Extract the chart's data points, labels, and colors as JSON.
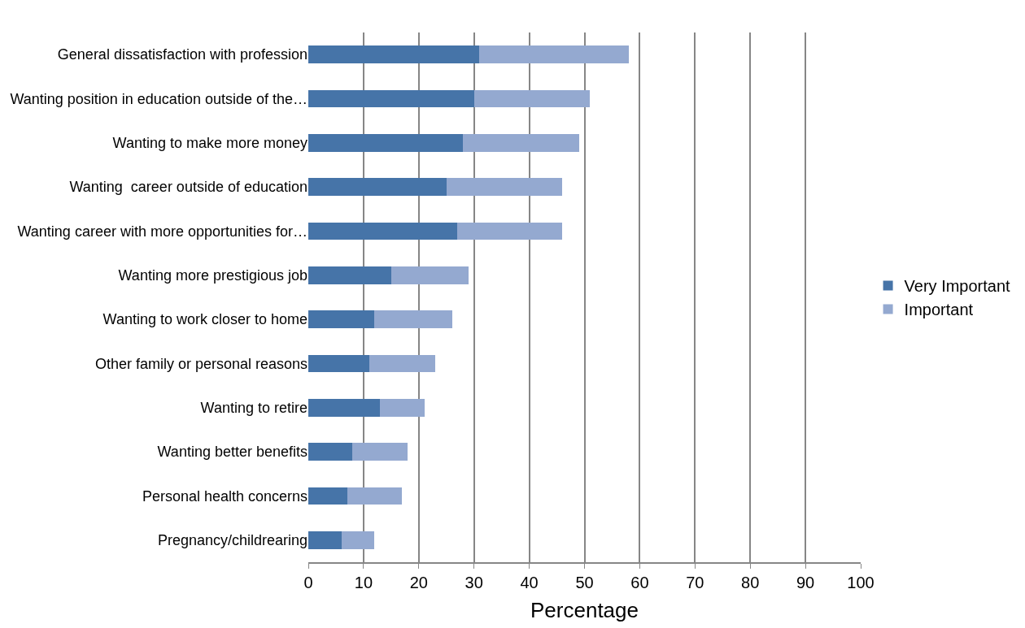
{
  "chart_data": {
    "type": "bar",
    "orientation": "horizontal",
    "stacked": true,
    "categories": [
      "General dissatisfaction with profession",
      "Wanting position in education outside of the…",
      "Wanting to make more money",
      "Wanting  career outside of education",
      "Wanting career with more opportunities for…",
      "Wanting more prestigious job",
      "Wanting to work closer to home",
      "Other family or personal reasons",
      "Wanting to retire",
      "Wanting better benefits",
      "Personal health concerns",
      "Pregnancy/childrearing"
    ],
    "series": [
      {
        "name": "Very Important",
        "color": "#4674a8",
        "values": [
          31,
          30,
          28,
          25,
          27,
          15,
          12,
          11,
          13,
          8,
          7,
          6
        ]
      },
      {
        "name": "Important",
        "color": "#94a9d0",
        "values": [
          27,
          21,
          21,
          21,
          19,
          14,
          14,
          12,
          8,
          10,
          10,
          6
        ]
      }
    ],
    "xlabel": "Percentage",
    "xlim": [
      0,
      100
    ],
    "xticks": [
      0,
      10,
      20,
      30,
      40,
      50,
      60,
      70,
      80,
      90,
      100
    ],
    "grid": "x",
    "legend": "right"
  }
}
